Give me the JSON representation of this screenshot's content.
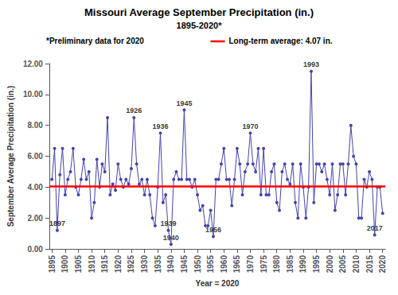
{
  "chart_data": {
    "type": "line",
    "title": "Missouri Average September Precipitation (in.)",
    "subtitle": "1895-2020*",
    "xlabel": "Year = 2020",
    "ylabel": "September Average Precipitation (in.)",
    "color": "#4444AA",
    "marker": "circle",
    "grid": false,
    "x": [
      1895,
      1896,
      1897,
      1898,
      1899,
      1900,
      1901,
      1902,
      1903,
      1904,
      1905,
      1906,
      1907,
      1908,
      1909,
      1910,
      1911,
      1912,
      1913,
      1914,
      1915,
      1916,
      1917,
      1918,
      1919,
      1920,
      1921,
      1922,
      1923,
      1924,
      1925,
      1926,
      1927,
      1928,
      1929,
      1930,
      1931,
      1932,
      1933,
      1934,
      1935,
      1936,
      1937,
      1938,
      1939,
      1940,
      1941,
      1942,
      1943,
      1944,
      1945,
      1946,
      1947,
      1948,
      1949,
      1950,
      1951,
      1952,
      1953,
      1954,
      1955,
      1956,
      1957,
      1958,
      1959,
      1960,
      1961,
      1962,
      1963,
      1964,
      1965,
      1966,
      1967,
      1968,
      1969,
      1970,
      1971,
      1972,
      1973,
      1974,
      1975,
      1976,
      1977,
      1978,
      1979,
      1980,
      1981,
      1982,
      1983,
      1984,
      1985,
      1986,
      1987,
      1988,
      1989,
      1990,
      1991,
      1992,
      1993,
      1994,
      1995,
      1996,
      1997,
      1998,
      1999,
      2000,
      2001,
      2002,
      2003,
      2004,
      2005,
      2006,
      2007,
      2008,
      2009,
      2010,
      2011,
      2012,
      2013,
      2014,
      2015,
      2016,
      2017,
      2018,
      2019,
      2020
    ],
    "values": [
      4.5,
      6.5,
      1.2,
      4.8,
      6.5,
      3.5,
      4.5,
      5.0,
      6.5,
      4.0,
      3.5,
      4.5,
      5.8,
      4.5,
      5.0,
      2.0,
      3.0,
      5.8,
      4.0,
      5.5,
      5.0,
      8.5,
      3.5,
      4.2,
      3.8,
      5.5,
      4.5,
      4.0,
      4.5,
      4.2,
      5.2,
      8.5,
      5.5,
      4.2,
      4.5,
      3.5,
      4.5,
      3.5,
      2.0,
      1.5,
      4.0,
      7.5,
      3.0,
      3.5,
      1.2,
      0.3,
      4.5,
      5.0,
      4.5,
      4.5,
      9.0,
      4.5,
      4.5,
      4.0,
      4.5,
      3.5,
      2.5,
      2.8,
      1.5,
      1.5,
      2.5,
      0.8,
      4.5,
      4.5,
      5.5,
      6.5,
      4.5,
      4.5,
      2.8,
      4.5,
      6.5,
      5.5,
      3.5,
      5.0,
      5.5,
      7.5,
      5.5,
      5.0,
      6.5,
      3.5,
      6.5,
      3.5,
      3.5,
      5.0,
      5.5,
      3.0,
      2.5,
      5.0,
      5.5,
      4.5,
      4.2,
      5.5,
      3.0,
      2.0,
      5.5,
      4.0,
      2.0,
      4.0,
      11.5,
      3.0,
      5.5,
      5.5,
      5.0,
      5.5,
      4.5,
      3.5,
      5.5,
      2.5,
      3.5,
      5.5,
      5.5,
      3.5,
      5.5,
      8.0,
      6.0,
      5.5,
      2.0,
      2.0,
      4.5,
      4.0,
      5.0,
      4.5,
      0.9,
      4.0,
      4.0,
      2.3
    ],
    "xlim": [
      1894,
      2021
    ],
    "xticks": [
      1895,
      1900,
      1905,
      1910,
      1915,
      1920,
      1925,
      1930,
      1935,
      1940,
      1945,
      1950,
      1955,
      1960,
      1965,
      1970,
      1975,
      1980,
      1985,
      1990,
      1995,
      2000,
      2005,
      2010,
      2015,
      2020
    ],
    "ylim": [
      0,
      12
    ],
    "yticks": [
      {
        "value": 0,
        "label": "0.00"
      },
      {
        "value": 2,
        "label": "2.00"
      },
      {
        "value": 4,
        "label": "4.00"
      },
      {
        "value": 6,
        "label": "6.00"
      },
      {
        "value": 8,
        "label": "8.00"
      },
      {
        "value": 10,
        "label": "10.00"
      },
      {
        "value": 12,
        "label": "12.00"
      }
    ],
    "reference_lines": [
      {
        "y": 4.07,
        "color": "#FF0000",
        "label": "Long-term average: 4.07 in."
      }
    ],
    "notes": [
      "*Preliminary data for 2020"
    ],
    "annotations": [
      {
        "x": 1897,
        "y": 1.2,
        "text": "1897"
      },
      {
        "x": 1926,
        "y": 8.5,
        "text": "1926"
      },
      {
        "x": 1936,
        "y": 7.5,
        "text": "1936"
      },
      {
        "x": 1939,
        "y": 1.2,
        "text": "1939"
      },
      {
        "x": 1940,
        "y": 0.3,
        "text": "1940"
      },
      {
        "x": 1945,
        "y": 9.0,
        "text": "1945"
      },
      {
        "x": 1956,
        "y": 0.8,
        "text": "1956"
      },
      {
        "x": 1970,
        "y": 7.5,
        "text": "1970"
      },
      {
        "x": 1993,
        "y": 11.5,
        "text": "1993"
      },
      {
        "x": 2017,
        "y": 0.9,
        "text": "2017"
      }
    ]
  }
}
